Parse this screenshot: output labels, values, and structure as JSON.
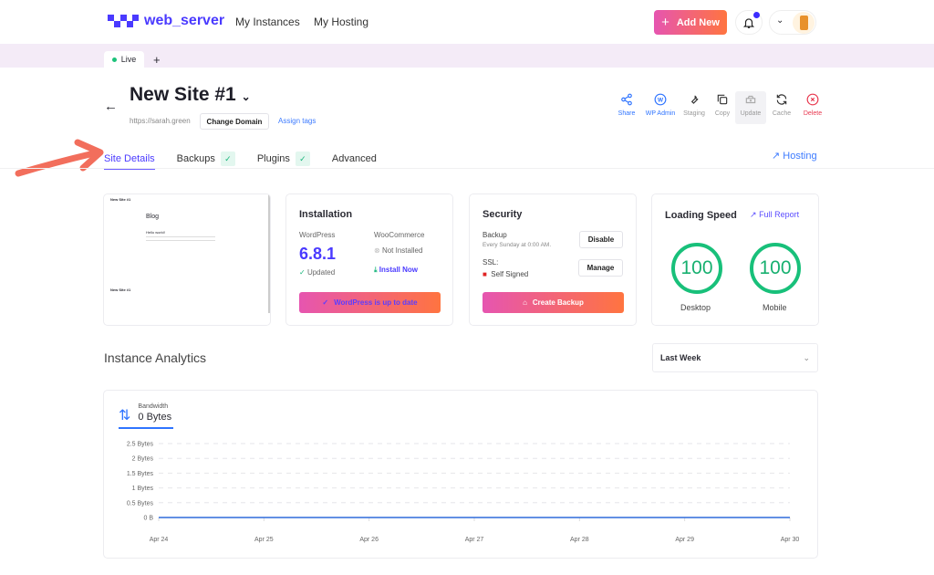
{
  "header": {
    "brand": "web_server",
    "nav": [
      "My Instances",
      "My Hosting"
    ],
    "add_new": "Add New"
  },
  "env_tabs": {
    "live": "Live",
    "add": "+"
  },
  "site": {
    "title": "New Site #1",
    "url": "https://sarah.green",
    "change_domain": "Change Domain",
    "assign_tags": "Assign tags"
  },
  "tools": [
    "Share",
    "WP Admin",
    "Staging",
    "Copy",
    "Update",
    "Cache",
    "Delete"
  ],
  "tabs": [
    "Site Details",
    "Backups",
    "Plugins",
    "Advanced"
  ],
  "hosting_link": "Hosting",
  "preview": {
    "site_name": "New Site #1",
    "blog": "Blog",
    "post": "Hello world!",
    "footer_title": "New Site #1"
  },
  "installation": {
    "title": "Installation",
    "wp_label": "WordPress",
    "wp_version": "6.8.1",
    "wp_status": "Updated",
    "woo_label": "WooCommerce",
    "woo_status": "Not Installed",
    "woo_action": "Install Now",
    "button": "WordPress is up to date"
  },
  "security": {
    "title": "Security",
    "backup_label": "Backup",
    "backup_schedule": "Every Sunday at 0:00 AM.",
    "disable": "Disable",
    "ssl_label": "SSL:",
    "ssl_status": "Self Signed",
    "manage": "Manage",
    "create_backup": "Create Backup"
  },
  "speed": {
    "title": "Loading Speed",
    "full_report": "Full Report",
    "desktop_score": "100",
    "desktop_label": "Desktop",
    "mobile_score": "100",
    "mobile_label": "Mobile"
  },
  "analytics": {
    "title": "Instance Analytics",
    "range": "Last Week",
    "metric_label": "Bandwidth",
    "metric_value": "0 Bytes"
  },
  "colors": {
    "accent": "#4a3aff",
    "green": "#18c07a",
    "gradient_start": "#e655b0",
    "gradient_end": "#ff7440"
  },
  "chart_data": {
    "type": "line",
    "x": [
      "Apr 24",
      "Apr 25",
      "Apr 26",
      "Apr 27",
      "Apr 28",
      "Apr 29",
      "Apr 30"
    ],
    "series": [
      {
        "name": "Bandwidth",
        "values": [
          0,
          0,
          0,
          0,
          0,
          0,
          0
        ]
      }
    ],
    "yticks": [
      "0 B",
      "0.5 Bytes",
      "1 Bytes",
      "1.5 Bytes",
      "2 Bytes",
      "2.5 Bytes"
    ],
    "ylim": [
      0,
      2.5
    ],
    "grid": true
  }
}
